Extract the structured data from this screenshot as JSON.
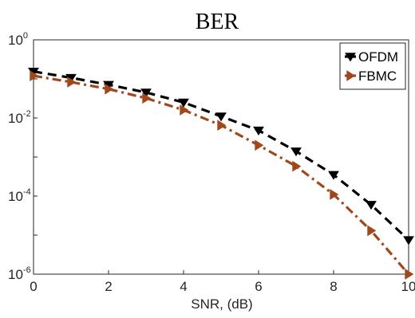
{
  "chart_data": {
    "type": "line",
    "title": "BER",
    "xlabel": "SNR, (dB)",
    "ylabel": "",
    "xlim": [
      0,
      10
    ],
    "ylim": [
      1e-06,
      1
    ],
    "yscale": "log",
    "grid": false,
    "legend_position": "top-right",
    "x_ticks": [
      "0",
      "2",
      "4",
      "6",
      "8",
      "10"
    ],
    "y_ticks": [
      {
        "base": "10",
        "exp": "0",
        "value": 1
      },
      {
        "base": "10",
        "exp": "-2",
        "value": 0.01
      },
      {
        "base": "10",
        "exp": "-4",
        "value": 0.0001
      },
      {
        "base": "10",
        "exp": "-6",
        "value": 1e-06
      }
    ],
    "x": [
      0,
      1,
      2,
      3,
      4,
      5,
      6,
      7,
      8,
      9,
      10
    ],
    "series": [
      {
        "name": "OFDM",
        "color": "#000000",
        "line_style": "dashed",
        "marker": "triangle-down",
        "values": [
          0.155,
          0.107,
          0.071,
          0.045,
          0.025,
          0.011,
          0.0048,
          0.0014,
          0.00035,
          6e-05,
          7.5e-06
        ]
      },
      {
        "name": "FBMC",
        "color": "#a0481c",
        "line_style": "dash-dot",
        "marker": "triangle-right",
        "values": [
          0.12,
          0.083,
          0.055,
          0.032,
          0.016,
          0.0065,
          0.002,
          0.00058,
          0.00011,
          1.3e-05,
          1e-06
        ]
      }
    ]
  }
}
